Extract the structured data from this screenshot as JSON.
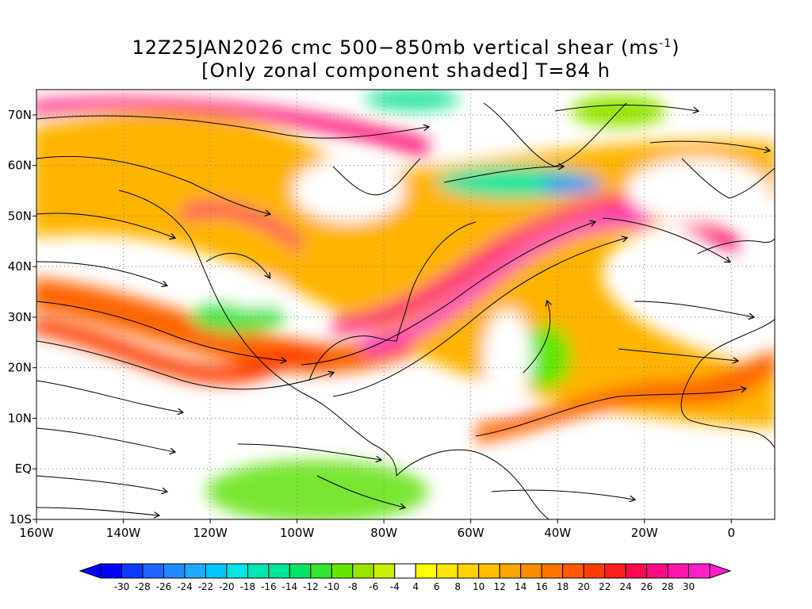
{
  "title": {
    "line1_main": "12Z25JAN2026 cmc 500−850mb vertical shear (ms",
    "line1_sup": "-1",
    "line1_end": ")",
    "line2": "[Only zonal component shaded] T=84 h"
  },
  "map": {
    "lon_range": [
      -160,
      10
    ],
    "lat_range": [
      -10,
      75
    ],
    "lat_ticks": [
      {
        "value": 70,
        "label": "70N"
      },
      {
        "value": 60,
        "label": "60N"
      },
      {
        "value": 50,
        "label": "50N"
      },
      {
        "value": 40,
        "label": "40N"
      },
      {
        "value": 30,
        "label": "30N"
      },
      {
        "value": 20,
        "label": "20N"
      },
      {
        "value": 10,
        "label": "10N"
      },
      {
        "value": 0,
        "label": "EQ"
      },
      {
        "value": -10,
        "label": "10S"
      }
    ],
    "lon_ticks": [
      {
        "value": -160,
        "label": "160W"
      },
      {
        "value": -140,
        "label": "140W"
      },
      {
        "value": -120,
        "label": "120W"
      },
      {
        "value": -100,
        "label": "100W"
      },
      {
        "value": -80,
        "label": "80W"
      },
      {
        "value": -60,
        "label": "60W"
      },
      {
        "value": -40,
        "label": "40W"
      },
      {
        "value": -20,
        "label": "20W"
      },
      {
        "value": 0,
        "label": "0"
      }
    ],
    "grid": "dotted",
    "shaded_field": "zonal component of 500-850mb vertical shear",
    "streamlines": true
  },
  "colorbar": {
    "units": "ms-1",
    "labels": [
      "-30",
      "-28",
      "-26",
      "-24",
      "-22",
      "-20",
      "-18",
      "-16",
      "-14",
      "-12",
      "-10",
      "-8",
      "-6",
      "-4",
      "4",
      "6",
      "8",
      "10",
      "12",
      "14",
      "16",
      "18",
      "20",
      "22",
      "24",
      "26",
      "28",
      "30"
    ],
    "colors": [
      "#0000ff",
      "#0a3cff",
      "#1e64ff",
      "#1e8cff",
      "#1eaaff",
      "#00c8ff",
      "#00e6e6",
      "#00e6b4",
      "#00e696",
      "#00e664",
      "#32e632",
      "#64e600",
      "#96e600",
      "#c8f000",
      "#ffffff",
      "#ffff00",
      "#ffe600",
      "#ffd200",
      "#ffbe00",
      "#ffa500",
      "#ff8c00",
      "#ff7300",
      "#ff5a00",
      "#ff3c00",
      "#ff1e1e",
      "#ff0a50",
      "#ff0a82",
      "#ff14aa",
      "#ff1ec8"
    ]
  }
}
